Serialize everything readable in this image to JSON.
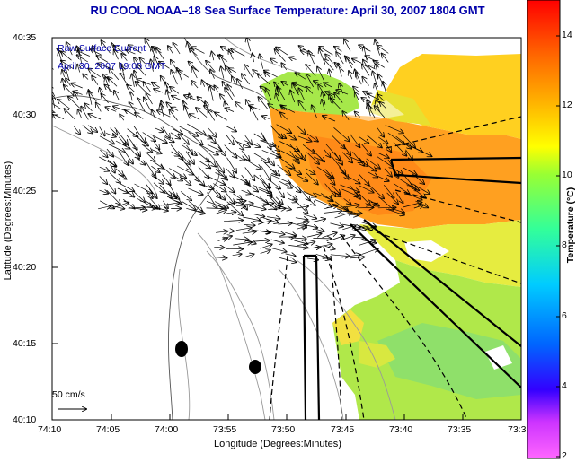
{
  "title": "RU COOL  NOAA–18  Sea Surface Temperature:  April 30, 2007 1804 GMT",
  "legend": {
    "line1": "Raw Surface Current",
    "line2": "April 30, 2007 19:00 GMT"
  },
  "x_axis": {
    "label": "Longitude (Degrees:Minutes)",
    "ticks": [
      "74:10",
      "74:05",
      "74:00",
      "73:55",
      "73:50",
      "73:45",
      "73:40",
      "73:35",
      "73:3"
    ]
  },
  "y_axis": {
    "label": "Latitude (Degrees:Minutes)",
    "ticks": [
      "40:35",
      "40:30",
      "40:25",
      "40:20",
      "40:15",
      "40:10"
    ]
  },
  "colorbar": {
    "label": "Temperature (°C)",
    "ticks": [
      "14",
      "12",
      "10",
      "8",
      "6",
      "4",
      "2"
    ],
    "range": [
      2,
      15
    ]
  },
  "scale_arrow": {
    "label": "50 cm/s"
  },
  "colors": {
    "title": "#0000aa",
    "legend_text": "#0000aa",
    "arrows": "#000000",
    "land": "#ffffff"
  }
}
